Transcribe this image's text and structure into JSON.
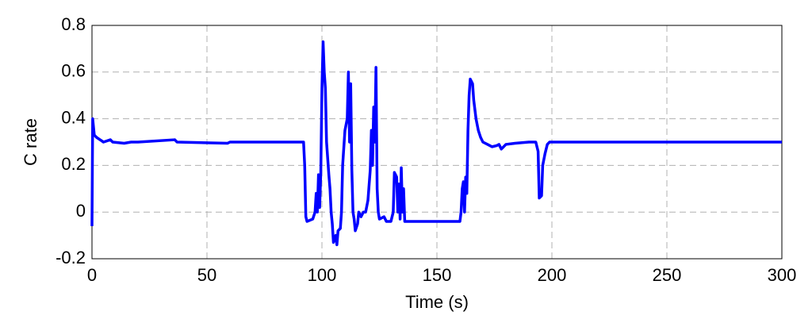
{
  "chart_data": {
    "type": "line",
    "x_label": "Time (s)",
    "y_label": "C rate",
    "x": [
      0,
      0.3,
      1,
      2,
      5,
      8,
      9,
      14,
      17,
      20,
      36,
      37,
      59,
      60,
      92,
      92.5,
      93,
      93.5,
      96,
      97,
      97.5,
      98,
      98.5,
      99,
      99.5,
      100,
      100.5,
      101,
      101.5,
      102,
      103,
      103.5,
      104,
      104.5,
      105,
      106,
      106.5,
      107,
      108,
      108.5,
      109,
      110,
      111,
      111.5,
      112,
      112.5,
      113,
      113.5,
      114,
      114.5,
      115.5,
      116,
      117,
      118,
      119,
      120,
      121,
      121.5,
      122,
      122.5,
      123,
      123.5,
      124,
      124.5,
      125,
      127,
      128,
      130,
      131,
      131.5,
      132.5,
      133,
      133.5,
      134,
      134.5,
      135,
      135.5,
      136,
      160,
      160.5,
      161,
      161.5,
      162,
      162.5,
      163,
      163.5,
      164,
      164.5,
      165.5,
      166,
      167,
      168,
      169,
      170,
      172,
      174,
      176,
      177,
      178,
      180,
      184,
      190,
      193,
      194,
      194.5,
      195.5,
      196,
      197,
      198,
      199,
      300
    ],
    "series": [
      {
        "color": "#0000ff",
        "values": [
          -0.06,
          0.4,
          0.33,
          0.32,
          0.3,
          0.31,
          0.3,
          0.295,
          0.3,
          0.3,
          0.31,
          0.3,
          0.295,
          0.3,
          0.3,
          0.2,
          -0.02,
          -0.04,
          -0.03,
          0.0,
          0.08,
          0.0,
          0.16,
          0.02,
          0.17,
          0.53,
          0.73,
          0.6,
          0.53,
          0.3,
          0.16,
          0.1,
          0.0,
          -0.05,
          -0.13,
          -0.1,
          -0.14,
          -0.08,
          -0.07,
          0.0,
          0.2,
          0.35,
          0.4,
          0.6,
          0.3,
          0.55,
          0.18,
          0.0,
          -0.03,
          -0.08,
          -0.05,
          0.0,
          -0.02,
          0.0,
          0.0,
          0.05,
          0.18,
          0.35,
          0.2,
          0.45,
          0.3,
          0.62,
          0.1,
          0.0,
          -0.03,
          -0.02,
          -0.04,
          -0.04,
          0.0,
          0.17,
          0.15,
          0.0,
          0.12,
          -0.03,
          0.19,
          0.0,
          0.1,
          -0.04,
          -0.04,
          0.0,
          0.1,
          0.13,
          0.0,
          0.15,
          0.08,
          0.35,
          0.5,
          0.57,
          0.55,
          0.48,
          0.4,
          0.35,
          0.32,
          0.3,
          0.29,
          0.28,
          0.285,
          0.29,
          0.27,
          0.29,
          0.295,
          0.3,
          0.3,
          0.26,
          0.06,
          0.07,
          0.2,
          0.25,
          0.29,
          0.3,
          0.3
        ]
      }
    ],
    "xlim": [
      0,
      300
    ],
    "xticks": [
      0,
      50,
      100,
      150,
      200,
      250,
      300
    ],
    "ylim": [
      -0.2,
      0.8
    ],
    "yticks": [
      -0.2,
      0,
      0.2,
      0.4,
      0.6,
      0.8
    ],
    "grid": true
  }
}
